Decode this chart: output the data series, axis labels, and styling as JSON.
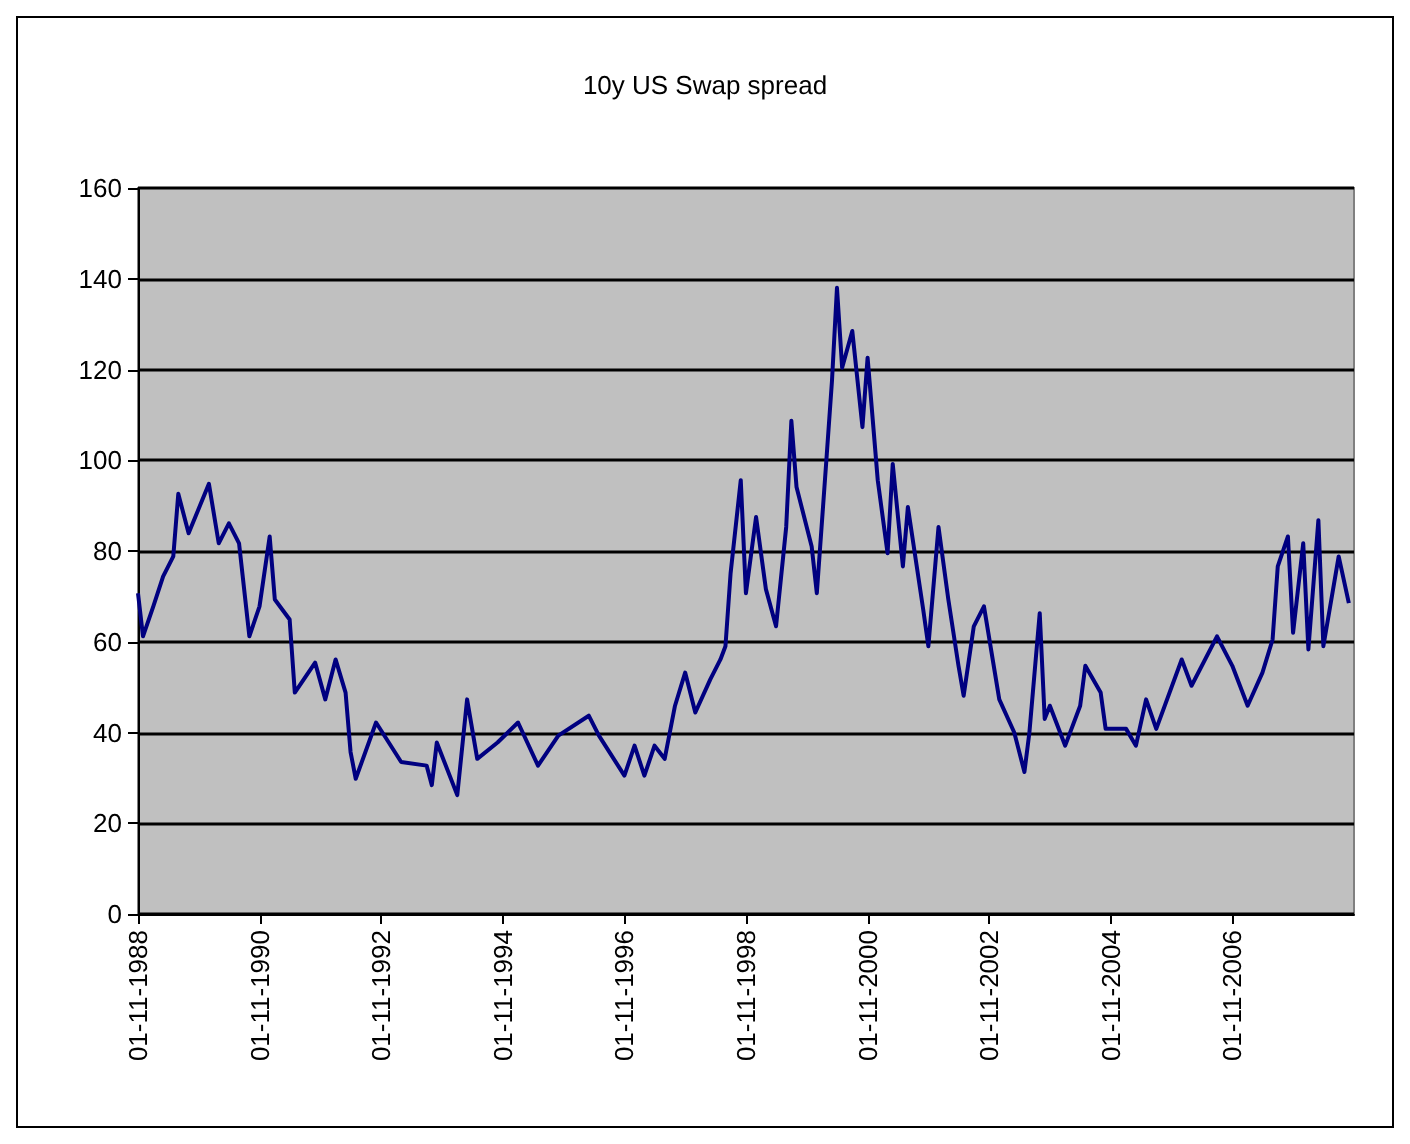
{
  "chart_data": {
    "type": "line",
    "title": "10y US Swap spread",
    "x": [
      "1988-11",
      "1988-12",
      "1989-02",
      "1989-04",
      "1989-06",
      "1989-07",
      "1989-09",
      "1990-01",
      "1990-03",
      "1990-05",
      "1990-07",
      "1990-09",
      "1990-11",
      "1991-01",
      "1991-02",
      "1991-05",
      "1991-06",
      "1991-10",
      "1991-12",
      "1992-02",
      "1992-04",
      "1992-05",
      "1992-06",
      "1992-10",
      "1993-03",
      "1993-08",
      "1993-09",
      "1993-10",
      "1994-02",
      "1994-04",
      "1994-06",
      "1994-10",
      "1995-02",
      "1995-06",
      "1995-10",
      "1996-04",
      "1996-06",
      "1996-11",
      "1997-01",
      "1997-03",
      "1997-05",
      "1997-07",
      "1997-09",
      "1997-11",
      "1998-01",
      "1998-04",
      "1998-06",
      "1998-07",
      "1998-08",
      "1998-10",
      "1998-11",
      "1999-01",
      "1999-03",
      "1999-05",
      "1999-07",
      "1999-08",
      "1999-09",
      "1999-12",
      "2000-01",
      "2000-03",
      "2000-04",
      "2000-05",
      "2000-06",
      "2000-08",
      "2000-10",
      "2000-11",
      "2001-01",
      "2001-03",
      "2001-04",
      "2001-06",
      "2001-07",
      "2001-10",
      "2001-11",
      "2002-01",
      "2002-03",
      "2002-05",
      "2002-06",
      "2002-08",
      "2002-10",
      "2003-01",
      "2003-04",
      "2003-06",
      "2003-07",
      "2003-09",
      "2003-10",
      "2003-11",
      "2004-02",
      "2004-05",
      "2004-06",
      "2004-09",
      "2004-10",
      "2005-02",
      "2005-04",
      "2005-06",
      "2005-08",
      "2006-01",
      "2006-03",
      "2006-08",
      "2006-11",
      "2007-02",
      "2007-05",
      "2007-07",
      "2007-08",
      "2007-10",
      "2007-11",
      "2008-01",
      "2008-02",
      "2008-04",
      "2008-05",
      "2008-08",
      "2008-10"
    ],
    "series": [
      {
        "color": "#000080",
        "values": [
          70.7,
          61.2,
          67.8,
          74.4,
          78.8,
          92.6,
          83.9,
          94.8,
          81.7,
          86.1,
          81.7,
          61.2,
          67.8,
          83.2,
          69.3,
          64.9,
          48.8,
          55.4,
          47.3,
          56.1,
          48.8,
          35.7,
          29.8,
          42.2,
          33.5,
          32.7,
          28.4,
          37.8,
          26.2,
          47.3,
          34.2,
          37.8,
          42.2,
          32.7,
          39.3,
          43.7,
          39.3,
          30.5,
          37.1,
          30.5,
          37.1,
          34.2,
          45.9,
          53.2,
          44.4,
          51.7,
          56.1,
          59,
          75.1,
          95.6,
          70.7,
          87.5,
          71.6,
          63.4,
          85.3,
          108.7,
          94.1,
          81,
          70.7,
          101.4,
          117.5,
          138,
          120.4,
          128.5,
          107.3,
          122.6,
          95.6,
          79.5,
          99.2,
          76.6,
          89.7,
          67.1,
          59,
          85.3,
          69.3,
          54.7,
          48.1,
          63.4,
          67.8,
          47.3,
          40,
          31.3,
          40,
          66.3,
          43,
          45.9,
          37.1,
          45.9,
          54.7,
          48.8,
          40.8,
          40.8,
          37.1,
          47.3,
          40.8,
          56.1,
          50.3,
          61.2,
          54.7,
          45.9,
          53.2,
          60.5,
          76.6,
          83.2,
          62,
          81.7,
          58.3,
          86.8,
          59,
          78.8,
          68.5
        ]
      }
    ],
    "xlim": [
      "1988-11-01",
      "2008-11-01"
    ],
    "xticks": [
      {
        "value": "1988-11-01",
        "label": "01-11-1988"
      },
      {
        "value": "1990-11-01",
        "label": "01-11-1990"
      },
      {
        "value": "1992-11-01",
        "label": "01-11-1992"
      },
      {
        "value": "1994-11-01",
        "label": "01-11-1994"
      },
      {
        "value": "1996-11-01",
        "label": "01-11-1996"
      },
      {
        "value": "1998-11-01",
        "label": "01-11-1998"
      },
      {
        "value": "2000-11-01",
        "label": "01-11-2000"
      },
      {
        "value": "2002-11-01",
        "label": "01-11-2002"
      },
      {
        "value": "2004-11-01",
        "label": "01-11-2004"
      },
      {
        "value": "2006-11-01",
        "label": "01-11-2006"
      }
    ],
    "ylim": [
      0,
      160
    ],
    "yticks": [
      0,
      20,
      40,
      60,
      80,
      100,
      120,
      140,
      160
    ],
    "grid": "y",
    "marker": "none",
    "line_style": "solid"
  }
}
